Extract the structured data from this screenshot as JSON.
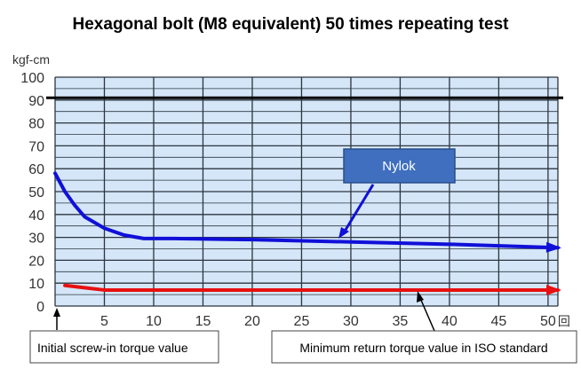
{
  "chart_data": {
    "type": "line",
    "title": "Hexagonal bolt (M8 equivalent) 50 times repeating test",
    "ylabel_unit": "kgf-cm",
    "x_unit_suffix": "回",
    "xlim": [
      0,
      51
    ],
    "ylim": [
      0,
      100
    ],
    "x_ticks": [
      5,
      10,
      15,
      20,
      25,
      30,
      35,
      40,
      45,
      50
    ],
    "x_tick_labels": [
      "5",
      "10",
      "15",
      "20",
      "25",
      "30",
      "35",
      "40",
      "45",
      "50"
    ],
    "y_ticks": [
      0,
      10,
      20,
      30,
      40,
      50,
      60,
      70,
      80,
      90,
      100
    ],
    "y_tick_labels": [
      "0",
      "10",
      "20",
      "30",
      "40",
      "50",
      "60",
      "70",
      "80",
      "90",
      "100"
    ],
    "grid": true,
    "reference_line": {
      "y": 91,
      "color": "#000000"
    },
    "series": [
      {
        "color": "#1010d8",
        "x": [
          0,
          1,
          2,
          3,
          5,
          7,
          9,
          12,
          20,
          30,
          40,
          51
        ],
        "y": [
          58,
          50,
          44,
          39,
          34,
          31,
          29.5,
          29.5,
          29,
          28,
          27,
          25.5
        ]
      },
      {
        "color": "#e81010",
        "x": [
          1,
          3,
          5,
          10,
          20,
          30,
          40,
          51
        ],
        "y": [
          9,
          8,
          7,
          7,
          7,
          7,
          7,
          7
        ]
      }
    ],
    "annotations": {
      "callout": "Nylok",
      "left_note": "Initial screw-in torque value",
      "right_note": "Minimum return torque value in ISO standard"
    }
  },
  "colors": {
    "plot_background": "#d4e6f7",
    "grid": "#2c3540",
    "callout_fill": "#3f6fbe",
    "callout_border": "#2a4f8e"
  }
}
